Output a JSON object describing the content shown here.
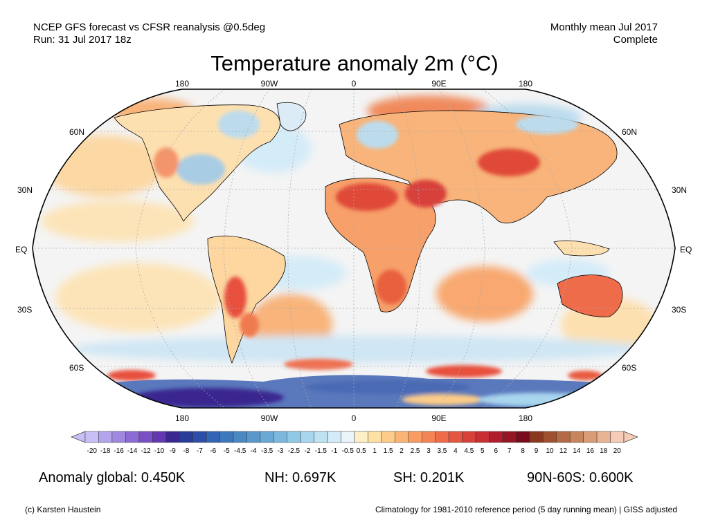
{
  "header": {
    "left_line1": "NCEP GFS forecast vs CFSR reanalysis @0.5deg",
    "left_line2": "Run: 31 Jul 2017 18z",
    "right_line1": "Monthly mean Jul 2017",
    "right_line2": "Complete"
  },
  "title": "Temperature anomaly 2m (°C)",
  "map": {
    "projection": "Robinson",
    "lon_labels_top": [
      "180",
      "90W",
      "0",
      "90E",
      "180"
    ],
    "lon_labels_bottom": [
      "180",
      "90W",
      "0",
      "90E",
      "180"
    ],
    "lat_labels_left": [
      "60N",
      "30N",
      "EQ",
      "30S",
      "60S"
    ],
    "lat_labels_right": [
      "60N",
      "30N",
      "EQ",
      "30S",
      "60S"
    ],
    "ocean_color": "#f4f4f4",
    "land_border_color": "#000000"
  },
  "colorbar": {
    "ticks": [
      "-20",
      "-18",
      "-16",
      "-14",
      "-12",
      "-10",
      "-9",
      "-8",
      "-7",
      "-6",
      "-5",
      "-4.5",
      "-4",
      "-3.5",
      "-3",
      "-2.5",
      "-2",
      "-1.5",
      "-1",
      "-0.5",
      "0.5",
      "1",
      "1.5",
      "2",
      "2.5",
      "3",
      "3.5",
      "4",
      "4.5",
      "5",
      "6",
      "7",
      "8",
      "9",
      "10",
      "12",
      "14",
      "16",
      "18",
      "20"
    ],
    "colors": [
      "#c8c0f4",
      "#b4a4ec",
      "#a088e0",
      "#8c6cd4",
      "#7850c4",
      "#6438b0",
      "#3a2890",
      "#283c98",
      "#2c4ea8",
      "#3464b4",
      "#3c78bc",
      "#4a88c4",
      "#5a98cc",
      "#6aa8d6",
      "#7cb8de",
      "#90c8e6",
      "#a8d6ee",
      "#bee2f2",
      "#d4ecf8",
      "#eaf4fa",
      "#fdf0c6",
      "#fde0a4",
      "#fccc88",
      "#fab474",
      "#f89c62",
      "#f48456",
      "#ee6c4a",
      "#e45642",
      "#d8403a",
      "#c82e34",
      "#b01e2c",
      "#941624",
      "#780c1a",
      "#8a3820",
      "#a0502e",
      "#b46a46",
      "#c8845c",
      "#d89c76",
      "#e8b494",
      "#f6ccb6"
    ]
  },
  "stats": {
    "global": "Anomaly global: 0.450K",
    "nh": "NH: 0.697K",
    "sh": "SH: 0.201K",
    "arctic": "90N-60S: 0.600K"
  },
  "footer": {
    "left": "(c) Karsten Haustein",
    "right": "Climatology for 1981-2010 reference period (5 day running mean) | GISS adjusted"
  }
}
